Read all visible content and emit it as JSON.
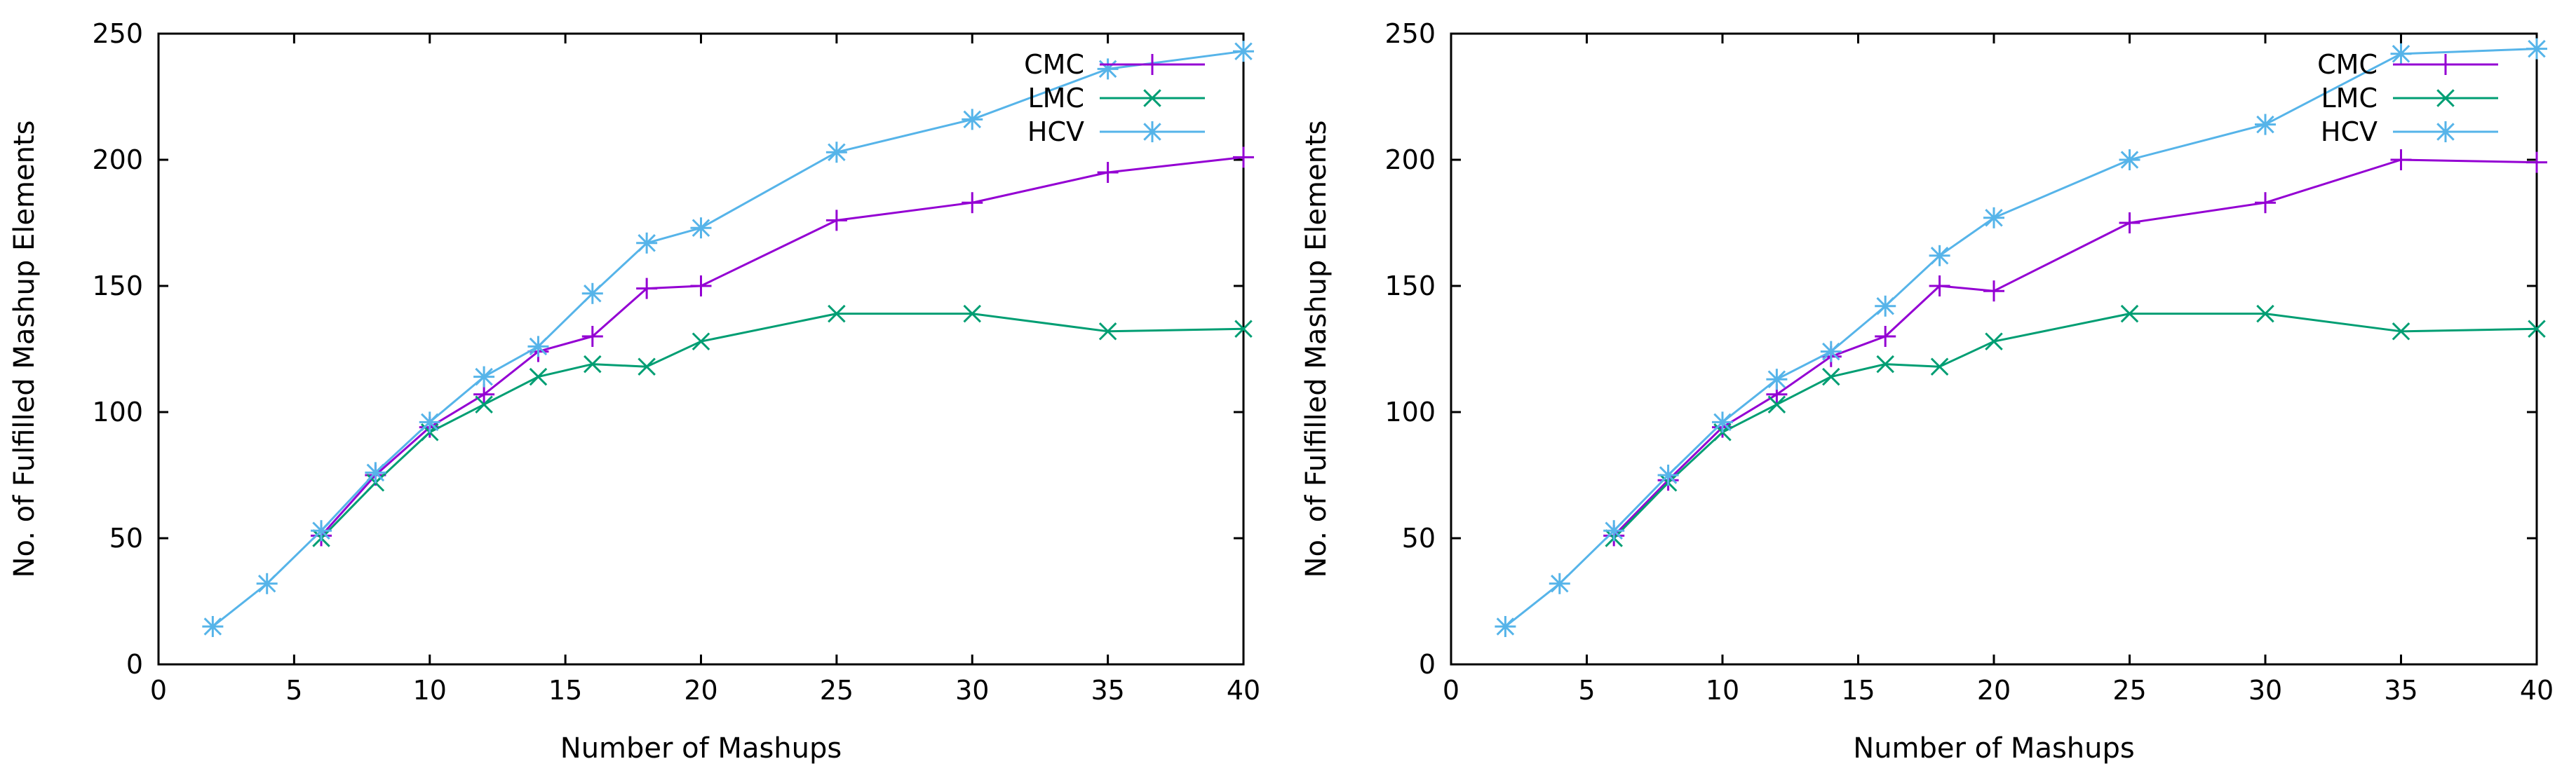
{
  "chart_data": [
    {
      "type": "line",
      "title": "",
      "xlabel": "Number of Mashups",
      "ylabel": "No. of Fulfilled Mashup Elements",
      "xlim": [
        0,
        40
      ],
      "ylim": [
        0,
        250
      ],
      "xticks": [
        0,
        5,
        10,
        15,
        20,
        25,
        30,
        35,
        40
      ],
      "yticks": [
        0,
        50,
        100,
        150,
        200,
        250
      ],
      "grid": false,
      "legend_position": "top-right",
      "series": [
        {
          "name": "CMC",
          "color": "#9400d3",
          "marker": "plus",
          "x": [
            6,
            8,
            10,
            12,
            14,
            16,
            18,
            20,
            25,
            30,
            35,
            40
          ],
          "y": [
            51,
            75,
            94,
            107,
            124,
            130,
            149,
            150,
            176,
            183,
            195,
            201
          ]
        },
        {
          "name": "LMC",
          "color": "#009e73",
          "marker": "cross",
          "x": [
            6,
            8,
            10,
            12,
            14,
            16,
            18,
            20,
            25,
            30,
            35,
            40
          ],
          "y": [
            50,
            72,
            92,
            103,
            114,
            119,
            118,
            128,
            139,
            139,
            132,
            133
          ]
        },
        {
          "name": "HCV",
          "color": "#56b4e9",
          "marker": "star",
          "x": [
            2,
            4,
            6,
            8,
            10,
            12,
            14,
            16,
            18,
            20,
            25,
            30,
            35,
            40
          ],
          "y": [
            15,
            32,
            53,
            76,
            96,
            114,
            126,
            147,
            167,
            173,
            203,
            216,
            236,
            243
          ]
        }
      ]
    },
    {
      "type": "line",
      "title": "",
      "xlabel": "Number of Mashups",
      "ylabel": "No. of Fulfilled Mashup Elements",
      "xlim": [
        0,
        40
      ],
      "ylim": [
        0,
        250
      ],
      "xticks": [
        0,
        5,
        10,
        15,
        20,
        25,
        30,
        35,
        40
      ],
      "yticks": [
        0,
        50,
        100,
        150,
        200,
        250
      ],
      "grid": false,
      "legend_position": "top-right",
      "series": [
        {
          "name": "CMC",
          "color": "#9400d3",
          "marker": "plus",
          "x": [
            6,
            8,
            10,
            12,
            14,
            16,
            18,
            20,
            25,
            30,
            35,
            40
          ],
          "y": [
            51,
            73,
            94,
            107,
            122,
            130,
            150,
            148,
            175,
            183,
            200,
            199
          ]
        },
        {
          "name": "LMC",
          "color": "#009e73",
          "marker": "cross",
          "x": [
            6,
            8,
            10,
            12,
            14,
            16,
            18,
            20,
            25,
            30,
            35,
            40
          ],
          "y": [
            50,
            72,
            92,
            103,
            114,
            119,
            118,
            128,
            139,
            139,
            132,
            133
          ]
        },
        {
          "name": "HCV",
          "color": "#56b4e9",
          "marker": "star",
          "x": [
            2,
            4,
            6,
            8,
            10,
            12,
            14,
            16,
            18,
            20,
            25,
            30,
            35,
            40
          ],
          "y": [
            15,
            32,
            53,
            75,
            96,
            113,
            124,
            142,
            162,
            177,
            200,
            214,
            242,
            244
          ]
        }
      ]
    }
  ]
}
